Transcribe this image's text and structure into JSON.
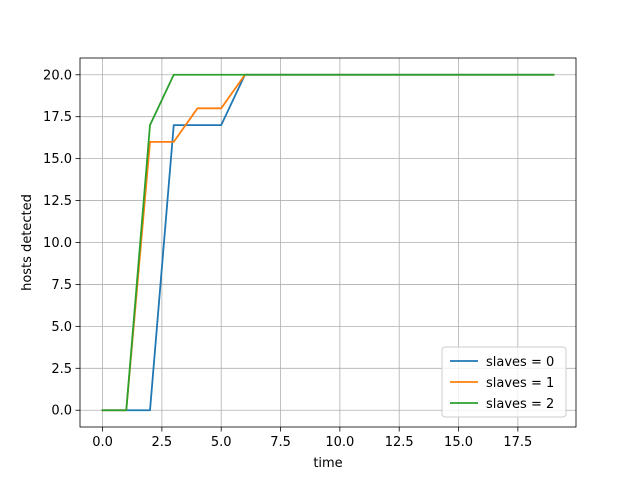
{
  "chart_data": {
    "type": "line",
    "title": "",
    "xlabel": "time",
    "ylabel": "hosts detected",
    "xlim": [
      -0.95,
      19.95
    ],
    "ylim": [
      -1.0,
      21.0
    ],
    "x_ticks": [
      0.0,
      2.5,
      5.0,
      7.5,
      10.0,
      12.5,
      15.0,
      17.5
    ],
    "x_tick_labels": [
      "0.0",
      "2.5",
      "5.0",
      "7.5",
      "10.0",
      "12.5",
      "15.0",
      "17.5"
    ],
    "y_ticks": [
      0.0,
      2.5,
      5.0,
      7.5,
      10.0,
      12.5,
      15.0,
      17.5,
      20.0
    ],
    "y_tick_labels": [
      "0.0",
      "2.5",
      "5.0",
      "7.5",
      "10.0",
      "12.5",
      "15.0",
      "17.5",
      "20.0"
    ],
    "grid": true,
    "legend_position": "lower right",
    "x": [
      0,
      1,
      2,
      3,
      4,
      5,
      6,
      7,
      8,
      9,
      10,
      11,
      12,
      13,
      14,
      15,
      16,
      17,
      18,
      19
    ],
    "series": [
      {
        "name": "slaves = 0",
        "color": "#1f77b4",
        "values": [
          0,
          0,
          0,
          17,
          17,
          17,
          20,
          20,
          20,
          20,
          20,
          20,
          20,
          20,
          20,
          20,
          20,
          20,
          20,
          20
        ]
      },
      {
        "name": "slaves = 1",
        "color": "#ff7f0e",
        "values": [
          0,
          0,
          16,
          16,
          18,
          18,
          20,
          20,
          20,
          20,
          20,
          20,
          20,
          20,
          20,
          20,
          20,
          20,
          20,
          20
        ]
      },
      {
        "name": "slaves = 2",
        "color": "#2ca02c",
        "values": [
          0,
          0,
          17,
          20,
          20,
          20,
          20,
          20,
          20,
          20,
          20,
          20,
          20,
          20,
          20,
          20,
          20,
          20,
          20,
          20
        ]
      }
    ]
  }
}
